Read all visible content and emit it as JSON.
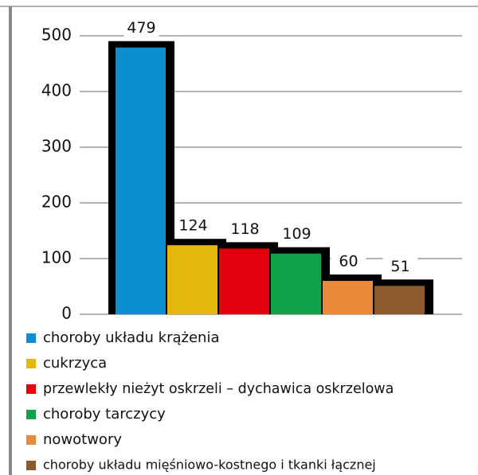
{
  "chart_data": {
    "type": "bar",
    "categories": [
      "choroby układu krążenia",
      "cukrzyca",
      "przewlekły nieżyt oskrzeli – dychawica oskrzelowa",
      "choroby tarczycy",
      "nowotwory",
      "choroby układu mięśniowo-kostnego i tkanki łącznej"
    ],
    "values": [
      479,
      124,
      118,
      109,
      60,
      51
    ],
    "colors": [
      "#0b8fd0",
      "#e3b70c",
      "#e2000f",
      "#0fa24b",
      "#e88a3a",
      "#8c5a2c"
    ],
    "ylim": [
      0,
      500
    ],
    "yticks": [
      0,
      100,
      200,
      300,
      400,
      500
    ],
    "grid": true
  }
}
